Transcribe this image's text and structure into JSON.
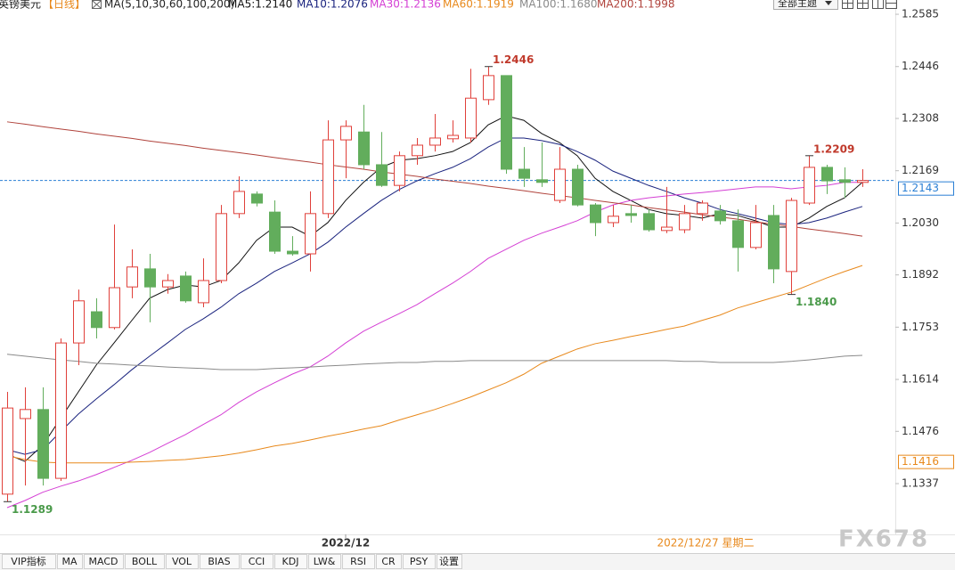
{
  "chart_data": {
    "type": "candlestick",
    "title": "英镑美元",
    "period": "【日线】",
    "indicator": "MA(5,10,30,60,100,200)",
    "theme_button": "全部主题",
    "watermark": "FX678",
    "cursor_label": "2022/12/27 星期二",
    "categories": [
      null,
      null,
      null,
      null,
      null,
      null,
      null,
      null,
      null,
      null,
      null,
      null,
      null,
      null,
      null,
      null,
      null,
      null,
      null,
      "2022/12",
      null,
      null,
      null,
      null,
      null,
      null,
      null,
      null,
      null,
      null,
      null,
      null,
      null,
      null,
      null,
      null,
      null,
      null,
      null,
      null,
      null,
      null,
      null,
      null,
      null,
      null,
      null,
      null,
      null
    ],
    "candles": {
      "up_color": "#e0403a",
      "down_color": "#62ad5c",
      "open": [
        1.1309,
        1.151,
        1.1534,
        1.1351,
        1.1711,
        1.1794,
        1.1752,
        1.186,
        1.1908,
        1.186,
        1.1889,
        1.1818,
        1.1877,
        1.2055,
        1.2107,
        1.2059,
        1.1955,
        1.1948,
        1.2055,
        1.2251,
        1.2272,
        1.2185,
        1.213,
        1.2209,
        1.2237,
        1.2254,
        1.2256,
        1.2358,
        1.2422,
        1.2173,
        1.2145,
        1.209,
        1.2173,
        1.2078,
        1.2031,
        1.2055,
        1.2055,
        1.201,
        1.2012,
        1.2055,
        1.2062,
        1.2036,
        1.1965,
        1.205,
        1.1901,
        1.2083,
        1.2178,
        1.2145,
        1.2138
      ],
      "high": [
        1.1581,
        1.1593,
        1.1593,
        1.1723,
        1.1853,
        1.183,
        1.2026,
        1.196,
        1.1948,
        1.1894,
        1.1901,
        1.1936,
        1.2078,
        1.2154,
        1.2114,
        1.209,
        1.1995,
        1.2114,
        1.2303,
        1.2303,
        1.2344,
        1.2272,
        1.222,
        1.2256,
        1.232,
        1.2303,
        1.244,
        1.2446,
        1.2422,
        1.2232,
        1.2244,
        1.2232,
        1.2185,
        1.2083,
        1.2078,
        1.2078,
        1.2066,
        1.2126,
        1.2078,
        1.209,
        1.2078,
        1.2066,
        1.2078,
        1.2078,
        1.2097,
        1.2209,
        1.2185,
        1.2178,
        1.2173
      ],
      "low": [
        1.1289,
        1.1332,
        1.1332,
        1.1344,
        1.1652,
        1.1723,
        1.1747,
        1.183,
        1.1766,
        1.1842,
        1.1818,
        1.1806,
        1.187,
        1.2043,
        1.2074,
        1.1948,
        1.1943,
        1.1901,
        1.2043,
        1.2149,
        1.2173,
        1.2126,
        1.2114,
        1.2185,
        1.222,
        1.2244,
        1.2244,
        1.2344,
        1.2161,
        1.2126,
        1.2126,
        1.2083,
        1.2074,
        1.1995,
        1.2019,
        1.2031,
        1.2007,
        1.2003,
        1.2003,
        1.2036,
        1.2026,
        1.1901,
        1.196,
        1.187,
        1.184,
        1.2078,
        1.2107,
        1.2097,
        1.2126
      ],
      "close": [
        1.1538,
        1.1534,
        1.1351,
        1.1711,
        1.1823,
        1.1752,
        1.1858,
        1.1913,
        1.186,
        1.1877,
        1.1823,
        1.1877,
        1.2055,
        1.2114,
        1.2083,
        1.1955,
        1.1948,
        1.2055,
        1.2251,
        1.2287,
        1.2185,
        1.213,
        1.2209,
        1.2237,
        1.2256,
        1.2263,
        1.2362,
        1.2422,
        1.2173,
        1.2149,
        1.2138,
        1.2173,
        1.2078,
        1.2031,
        1.2048,
        1.205,
        1.2012,
        1.2019,
        1.2055,
        1.2083,
        1.2036,
        1.1965,
        1.2031,
        1.1908,
        1.209,
        1.2178,
        1.2142,
        1.2138,
        1.2143
      ]
    },
    "series": [
      {
        "name": "MA5:1.2140",
        "color": "#111111",
        "values": [
          1.1415,
          1.1396,
          1.1439,
          1.151,
          1.1581,
          1.1652,
          1.1711,
          1.1771,
          1.183,
          1.1853,
          1.1865,
          1.186,
          1.1877,
          1.1924,
          1.1984,
          1.2019,
          1.2019,
          1.1995,
          1.2031,
          1.209,
          1.2138,
          1.2178,
          1.2197,
          1.2201,
          1.2209,
          1.222,
          1.2244,
          1.2291,
          1.2315,
          1.2303,
          1.2268,
          1.2244,
          1.2209,
          1.2149,
          1.2114,
          1.209,
          1.2066,
          1.2055,
          1.205,
          1.2043,
          1.2055,
          1.205,
          1.2036,
          1.2019,
          1.2019,
          1.2043,
          1.2074,
          1.2097,
          1.2138
        ]
      },
      {
        "name": "MA10:1.2076",
        "color": "#1a237e",
        "values": [
          1.1427,
          1.1415,
          1.1427,
          1.1475,
          1.1522,
          1.1562,
          1.16,
          1.164,
          1.1676,
          1.1711,
          1.1747,
          1.1775,
          1.1806,
          1.1842,
          1.187,
          1.1901,
          1.1924,
          1.1948,
          1.1979,
          1.2019,
          1.2055,
          1.209,
          1.2119,
          1.2142,
          1.2161,
          1.2178,
          1.2201,
          1.2232,
          1.2256,
          1.2256,
          1.2249,
          1.2239,
          1.222,
          1.2197,
          1.2168,
          1.2149,
          1.213,
          1.2114,
          1.2097,
          1.2083,
          1.2066,
          1.2055,
          1.2043,
          1.2031,
          1.2026,
          1.2031,
          1.2043,
          1.2059,
          1.2074
        ]
      },
      {
        "name": "MA30:1.2136",
        "color": "#d43fd4",
        "values": [
          1.1273,
          1.1292,
          1.1314,
          1.133,
          1.1344,
          1.1361,
          1.138,
          1.1399,
          1.142,
          1.1444,
          1.1467,
          1.1494,
          1.152,
          1.1553,
          1.1581,
          1.1605,
          1.1628,
          1.1647,
          1.1676,
          1.1711,
          1.1742,
          1.1766,
          1.1789,
          1.1813,
          1.1842,
          1.187,
          1.1901,
          1.1936,
          1.196,
          1.1984,
          1.2003,
          1.2019,
          1.2036,
          1.2059,
          1.2078,
          1.209,
          1.2097,
          1.2102,
          1.2107,
          1.2111,
          1.2116,
          1.2121,
          1.2126,
          1.2126,
          1.2121,
          1.2126,
          1.213,
          1.2138,
          1.2138
        ]
      },
      {
        "name": "MA60:1.1919",
        "color": "#e8891c",
        "values": [
          1.1411,
          1.1401,
          1.1394,
          1.1392,
          1.1392,
          1.1392,
          1.1392,
          1.1394,
          1.1396,
          1.1399,
          1.1401,
          1.1406,
          1.1411,
          1.1418,
          1.1427,
          1.1437,
          1.1444,
          1.1453,
          1.1463,
          1.1472,
          1.1482,
          1.1491,
          1.1506,
          1.152,
          1.1534,
          1.155,
          1.1567,
          1.1586,
          1.1605,
          1.1628,
          1.1657,
          1.1676,
          1.1695,
          1.1709,
          1.1718,
          1.1728,
          1.1737,
          1.1747,
          1.1756,
          1.1771,
          1.1785,
          1.1804,
          1.1818,
          1.1832,
          1.1846,
          1.1865,
          1.1884,
          1.1901,
          1.1917
        ]
      },
      {
        "name": "MA100:1.1680",
        "color": "#8a8a8a",
        "values": [
          1.1681,
          1.1676,
          1.1671,
          1.1666,
          1.1662,
          1.1657,
          1.1655,
          1.1652,
          1.165,
          1.1647,
          1.1645,
          1.1643,
          1.164,
          1.164,
          1.164,
          1.1643,
          1.1645,
          1.1647,
          1.165,
          1.1652,
          1.1655,
          1.1657,
          1.1659,
          1.1659,
          1.1662,
          1.1662,
          1.1664,
          1.1664,
          1.1664,
          1.1664,
          1.1664,
          1.1664,
          1.1664,
          1.1664,
          1.1664,
          1.1664,
          1.1664,
          1.1664,
          1.1662,
          1.1662,
          1.1659,
          1.1659,
          1.1659,
          1.1659,
          1.1662,
          1.1666,
          1.1671,
          1.1676,
          1.1678
        ]
      },
      {
        "name": "MA200:1.1998",
        "color": "#b0433c",
        "values": [
          1.2299,
          1.2293,
          1.2286,
          1.228,
          1.2274,
          1.2267,
          1.2261,
          1.2255,
          1.2248,
          1.2242,
          1.2236,
          1.2229,
          1.2223,
          1.2217,
          1.2211,
          1.2204,
          1.2198,
          1.2192,
          1.2185,
          1.2179,
          1.2173,
          1.2166,
          1.216,
          1.2154,
          1.2147,
          1.2141,
          1.2135,
          1.2128,
          1.2122,
          1.2116,
          1.2109,
          1.2103,
          1.2097,
          1.209,
          1.2084,
          1.2078,
          1.2071,
          1.2065,
          1.2059,
          1.2052,
          1.2046,
          1.204,
          1.2033,
          1.2027,
          1.2021,
          1.2014,
          1.2008,
          1.2002,
          1.1995
        ]
      }
    ],
    "annotations": [
      {
        "text": "1.2446",
        "color": "#c0392b"
      },
      {
        "text": "1.2209",
        "color": "#c0392b"
      },
      {
        "text": "1.1840",
        "color": "#4a9a4a"
      },
      {
        "text": "1.1289",
        "color": "#4a9a4a"
      }
    ],
    "markers": [
      {
        "value": 1.2143,
        "color": "#2a7fd4",
        "dashed": true
      },
      {
        "value": 1.1416,
        "color": "#e8891c",
        "dashed": false
      }
    ],
    "ylim": [
      1.1202,
      1.2623
    ],
    "yticks": [
      1.2585,
      1.2446,
      1.2308,
      1.2169,
      {
        "value": 1.203,
        "label": "1.2030"
      },
      1.1892,
      1.1753,
      1.1614,
      1.1476,
      1.1337
    ],
    "grid": false,
    "toolbar": [
      "VIP指标",
      "MA",
      "MACD",
      "BOLL",
      "VOL",
      "BIAS",
      "CCI",
      "KDJ",
      "LW&",
      "RSI",
      "CR",
      "PSY",
      "设置"
    ]
  }
}
